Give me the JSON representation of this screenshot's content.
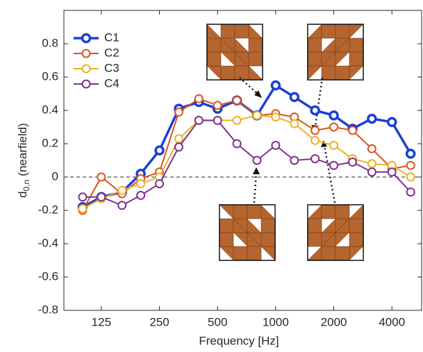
{
  "chart_data": {
    "type": "line",
    "x_label": "Frequency [Hz]",
    "y_label": {
      "main": "d",
      "sub": "0,n",
      "rest": "(nearfield)"
    },
    "x": [
      100,
      125,
      160,
      200,
      250,
      315,
      400,
      500,
      630,
      800,
      1000,
      1250,
      1600,
      2000,
      2500,
      3150,
      4000,
      5000
    ],
    "xscale": "log",
    "xlim": [
      80,
      5700
    ],
    "xticks": [
      125,
      250,
      500,
      1000,
      2000,
      4000
    ],
    "ylim": [
      -0.8,
      1.0
    ],
    "yticks": [
      -0.8,
      -0.6,
      -0.4,
      -0.2,
      0,
      0.2,
      0.4,
      0.6,
      0.8
    ],
    "hline": 0,
    "legend": "top-left",
    "series": [
      {
        "name": "C1",
        "color": "#1a3fd6",
        "values": [
          -0.18,
          -0.12,
          -0.09,
          0.02,
          0.16,
          0.41,
          0.45,
          0.41,
          0.46,
          0.37,
          0.55,
          0.48,
          0.4,
          0.37,
          0.29,
          0.35,
          0.33,
          0.14
        ]
      },
      {
        "name": "C2",
        "color": "#d95319",
        "values": [
          -0.2,
          0.0,
          -0.1,
          -0.01,
          0.03,
          0.39,
          0.47,
          0.43,
          0.46,
          0.37,
          0.38,
          0.36,
          0.28,
          0.3,
          0.28,
          0.17,
          0.05,
          0.07
        ]
      },
      {
        "name": "C3",
        "color": "#edb120",
        "values": [
          -0.19,
          -0.13,
          -0.08,
          -0.04,
          0.0,
          0.23,
          0.34,
          0.34,
          0.34,
          0.37,
          0.36,
          0.32,
          0.22,
          0.19,
          0.11,
          0.08,
          0.07,
          0.0
        ]
      },
      {
        "name": "C4",
        "color": "#7e2f8e",
        "values": [
          -0.12,
          -0.12,
          -0.17,
          -0.11,
          -0.04,
          0.18,
          0.34,
          0.34,
          0.2,
          0.1,
          0.19,
          0.1,
          0.11,
          0.07,
          0.09,
          0.03,
          0.03,
          -0.09
        ]
      }
    ]
  }
}
